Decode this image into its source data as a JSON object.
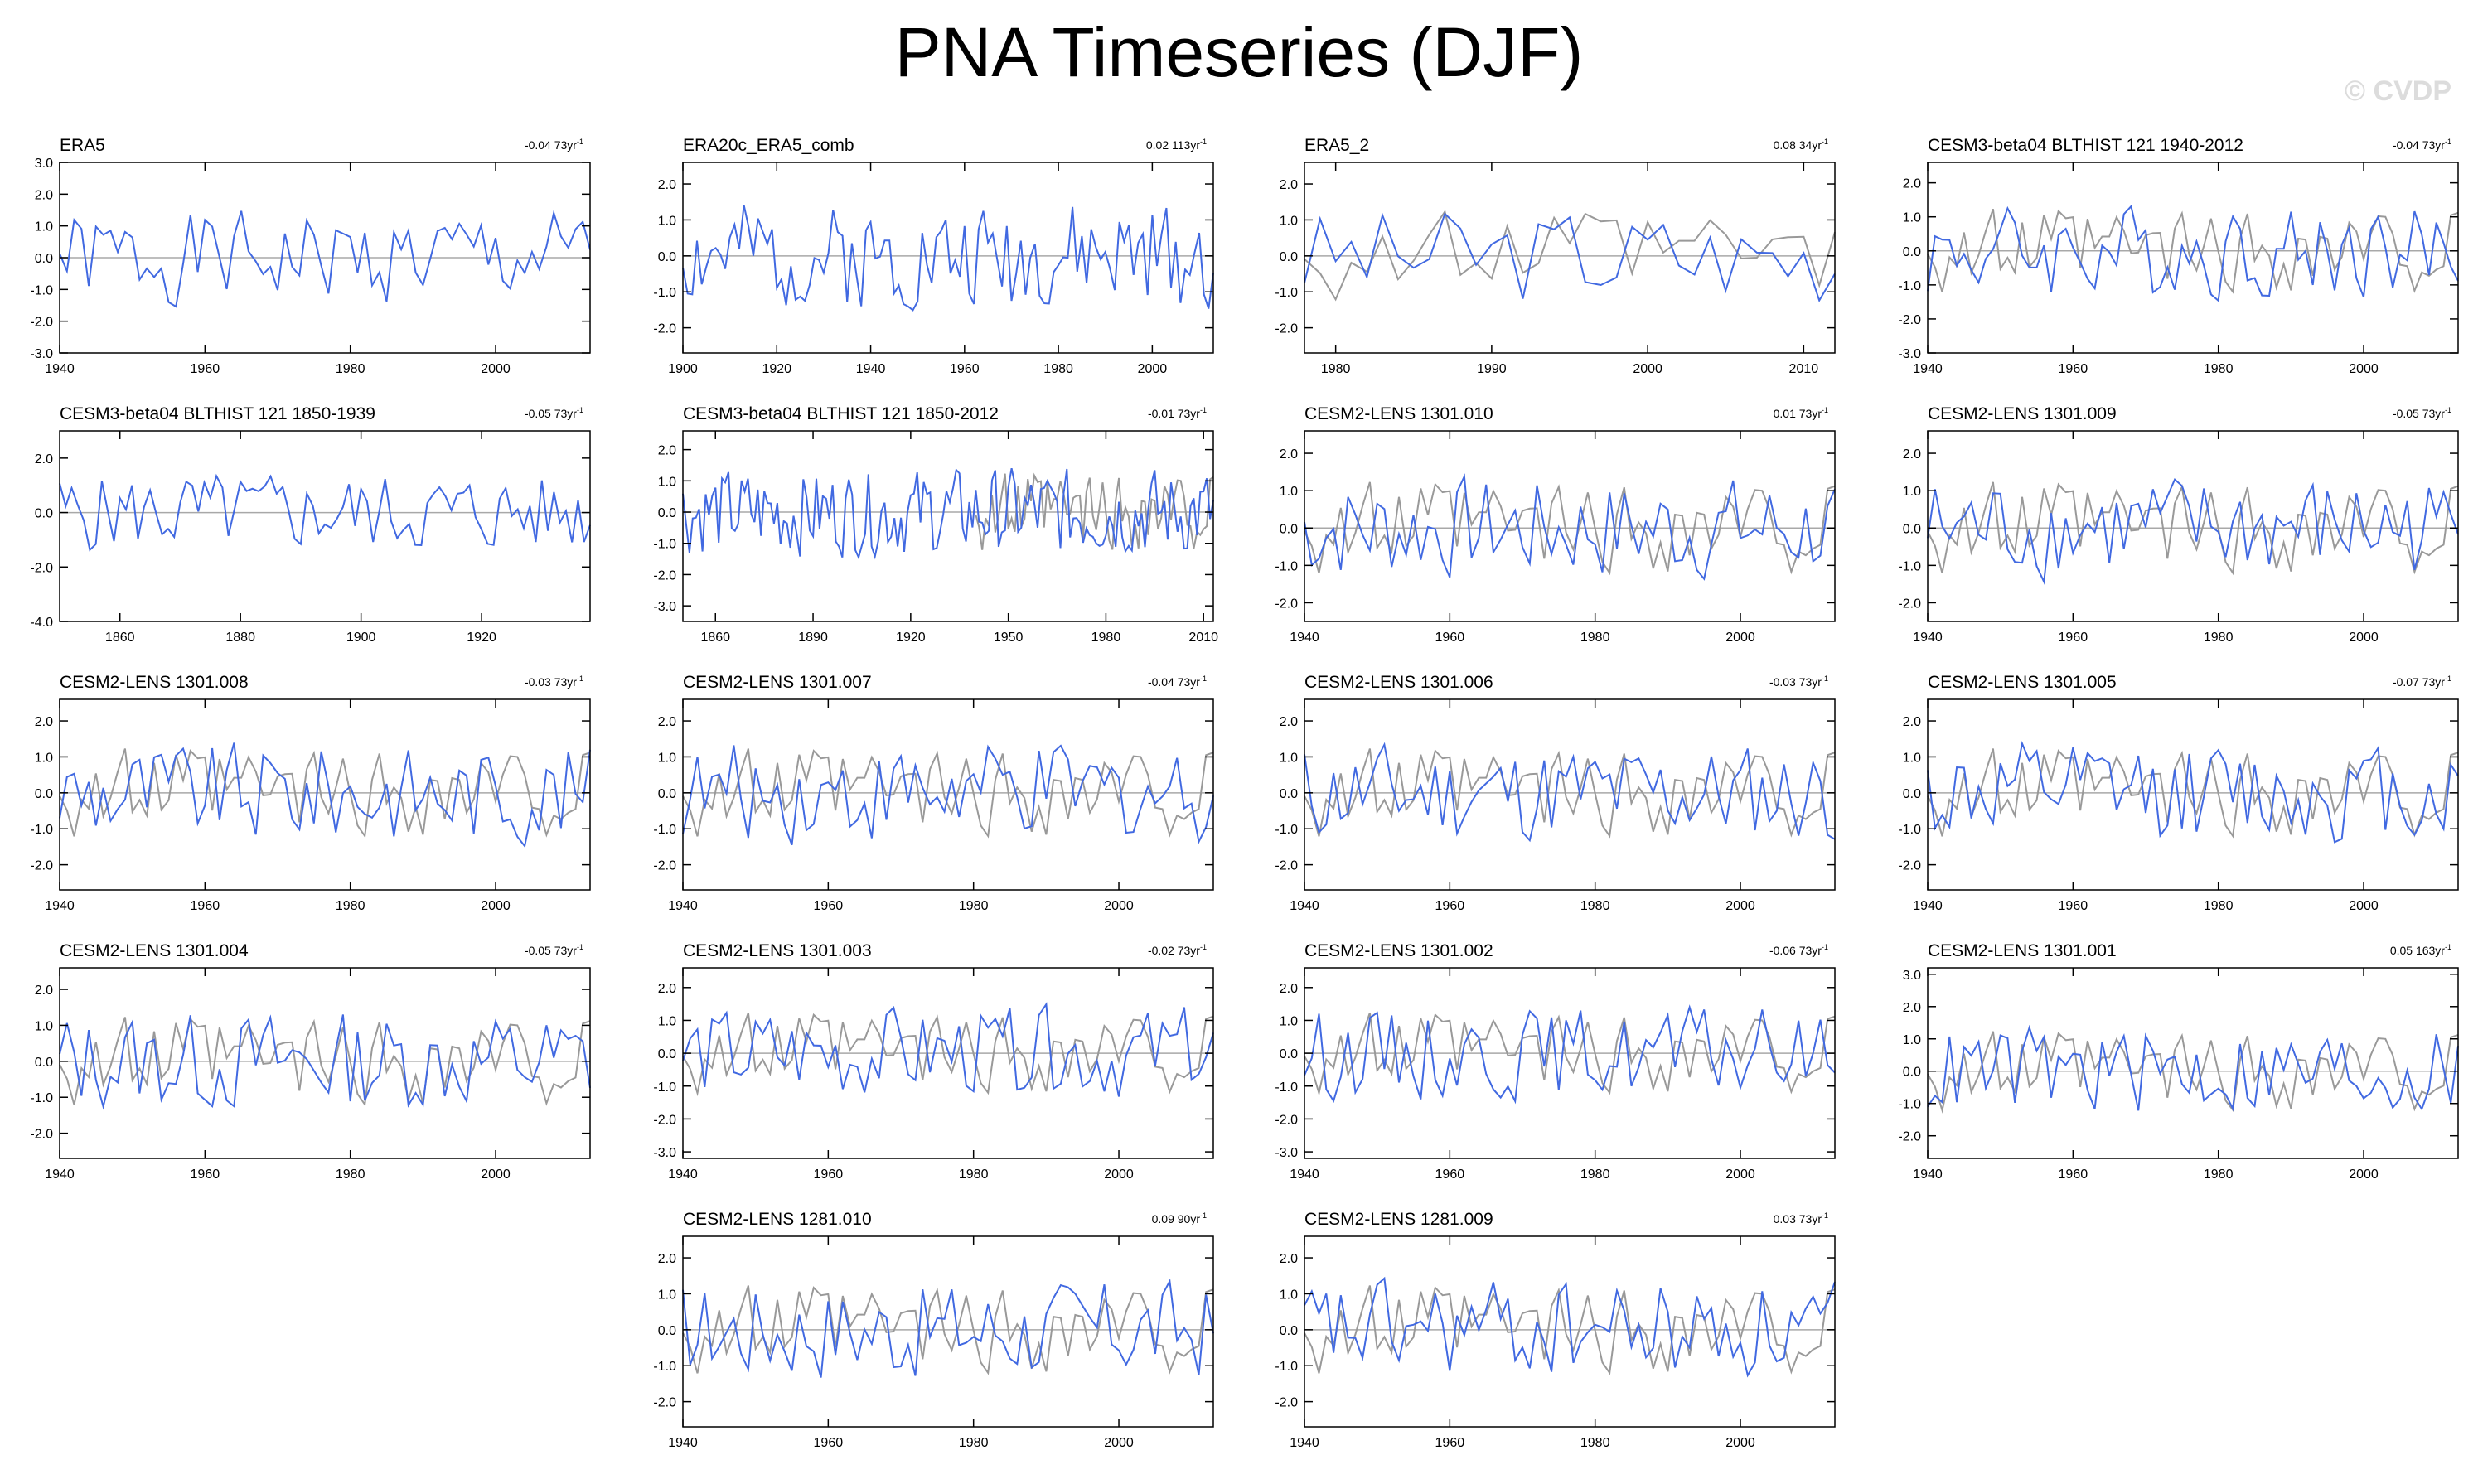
{
  "title": "PNA Timeseries (DJF)",
  "watermark": "© CVDP",
  "colors": {
    "series": "#4169e1",
    "observations": "#999999",
    "axis": "#000000",
    "zero": "#a8a8a8"
  },
  "chart_data": [
    {
      "title": "ERA5",
      "trend": "-0.04 73yr",
      "type": "line",
      "xlim": [
        1940,
        2013
      ],
      "ylim": [
        -3,
        3
      ],
      "yticks": [
        -3,
        -2,
        -1,
        0,
        1,
        2,
        3
      ],
      "xticks": [
        1940,
        1960,
        1980,
        2000
      ],
      "overlay": false,
      "seed": 1
    },
    {
      "title": "ERA20c_ERA5_comb",
      "trend": "0.02 113yr",
      "type": "line",
      "xlim": [
        1900,
        2013
      ],
      "ylim": [
        -2.7,
        2.6
      ],
      "yticks": [
        -2,
        -1,
        0,
        1,
        2
      ],
      "xticks": [
        1900,
        1920,
        1940,
        1960,
        1980,
        2000
      ],
      "overlay": false,
      "seed": 2
    },
    {
      "title": "ERA5_2",
      "trend": "0.08 34yr",
      "type": "line",
      "xlim": [
        1978,
        2012
      ],
      "ylim": [
        -2.7,
        2.6
      ],
      "yticks": [
        -2,
        -1,
        0,
        1,
        2
      ],
      "xticks": [
        1980,
        1990,
        2000,
        2010
      ],
      "overlay": true,
      "seed": 3
    },
    {
      "title": "CESM3-beta04 BLTHIST 121 1940-2012",
      "trend": "-0.04 73yr",
      "type": "line",
      "xlim": [
        1940,
        2013
      ],
      "ylim": [
        -3,
        2.6
      ],
      "yticks": [
        -3,
        -2,
        -1,
        0,
        1,
        2
      ],
      "xticks": [
        1940,
        1960,
        1980,
        2000
      ],
      "overlay": true,
      "seed": 4
    },
    {
      "title": "CESM3-beta04 BLTHIST 121 1850-1939",
      "trend": "-0.05 73yr",
      "type": "line",
      "xlim": [
        1850,
        1938
      ],
      "ylim": [
        -4,
        3
      ],
      "yticks": [
        -4,
        -2,
        0,
        2
      ],
      "xticks": [
        1860,
        1880,
        1900,
        1920
      ],
      "overlay": false,
      "seed": 5
    },
    {
      "title": "CESM3-beta04 BLTHIST 121 1850-2012",
      "trend": "-0.01 73yr",
      "type": "line",
      "xlim": [
        1850,
        2013
      ],
      "ylim": [
        -3.5,
        2.6
      ],
      "yticks": [
        -3,
        -2,
        -1,
        0,
        1,
        2
      ],
      "xticks": [
        1860,
        1890,
        1920,
        1950,
        1980,
        2010
      ],
      "overlay": true,
      "seed": 6
    },
    {
      "title": "CESM2-LENS 1301.010",
      "trend": "0.01 73yr",
      "type": "line",
      "xlim": [
        1940,
        2013
      ],
      "ylim": [
        -2.5,
        2.6
      ],
      "yticks": [
        -2,
        -1,
        0,
        1,
        2
      ],
      "xticks": [
        1940,
        1960,
        1980,
        2000
      ],
      "overlay": true,
      "seed": 7
    },
    {
      "title": "CESM2-LENS 1301.009",
      "trend": "-0.05 73yr",
      "type": "line",
      "xlim": [
        1940,
        2013
      ],
      "ylim": [
        -2.5,
        2.6
      ],
      "yticks": [
        -2,
        -1,
        0,
        1,
        2
      ],
      "xticks": [
        1940,
        1960,
        1980,
        2000
      ],
      "overlay": true,
      "seed": 8
    },
    {
      "title": "CESM2-LENS 1301.008",
      "trend": "-0.03 73yr",
      "type": "line",
      "xlim": [
        1940,
        2013
      ],
      "ylim": [
        -2.7,
        2.6
      ],
      "yticks": [
        -2,
        -1,
        0,
        1,
        2
      ],
      "xticks": [
        1940,
        1960,
        1980,
        2000
      ],
      "overlay": true,
      "seed": 9
    },
    {
      "title": "CESM2-LENS 1301.007",
      "trend": "-0.04 73yr",
      "type": "line",
      "xlim": [
        1940,
        2013
      ],
      "ylim": [
        -2.7,
        2.6
      ],
      "yticks": [
        -2,
        -1,
        0,
        1,
        2
      ],
      "xticks": [
        1940,
        1960,
        1980,
        2000
      ],
      "overlay": true,
      "seed": 10
    },
    {
      "title": "CESM2-LENS 1301.006",
      "trend": "-0.03 73yr",
      "type": "line",
      "xlim": [
        1940,
        2013
      ],
      "ylim": [
        -2.7,
        2.6
      ],
      "yticks": [
        -2,
        -1,
        0,
        1,
        2
      ],
      "xticks": [
        1940,
        1960,
        1980,
        2000
      ],
      "overlay": true,
      "seed": 11
    },
    {
      "title": "CESM2-LENS 1301.005",
      "trend": "-0.07 73yr",
      "type": "line",
      "xlim": [
        1940,
        2013
      ],
      "ylim": [
        -2.7,
        2.6
      ],
      "yticks": [
        -2,
        -1,
        0,
        1,
        2
      ],
      "xticks": [
        1940,
        1960,
        1980,
        2000
      ],
      "overlay": true,
      "seed": 12
    },
    {
      "title": "CESM2-LENS 1301.004",
      "trend": "-0.05 73yr",
      "type": "line",
      "xlim": [
        1940,
        2013
      ],
      "ylim": [
        -2.7,
        2.6
      ],
      "yticks": [
        -2,
        -1,
        0,
        1,
        2
      ],
      "xticks": [
        1940,
        1960,
        1980,
        2000
      ],
      "overlay": true,
      "seed": 13
    },
    {
      "title": "CESM2-LENS 1301.003",
      "trend": "-0.02 73yr",
      "type": "line",
      "xlim": [
        1940,
        2013
      ],
      "ylim": [
        -3.2,
        2.6
      ],
      "yticks": [
        -3,
        -2,
        -1,
        0,
        1,
        2
      ],
      "xticks": [
        1940,
        1960,
        1980,
        2000
      ],
      "overlay": true,
      "seed": 14
    },
    {
      "title": "CESM2-LENS 1301.002",
      "trend": "-0.06 73yr",
      "type": "line",
      "xlim": [
        1940,
        2013
      ],
      "ylim": [
        -3.2,
        2.6
      ],
      "yticks": [
        -3,
        -2,
        -1,
        0,
        1,
        2
      ],
      "xticks": [
        1940,
        1960,
        1980,
        2000
      ],
      "overlay": true,
      "seed": 15
    },
    {
      "title": "CESM2-LENS 1301.001",
      "trend": "0.05 163yr",
      "type": "line",
      "xlim": [
        1940,
        2013
      ],
      "ylim": [
        -2.7,
        3.2
      ],
      "yticks": [
        -2,
        -1,
        0,
        1,
        2,
        3
      ],
      "xticks": [
        1940,
        1960,
        1980,
        2000
      ],
      "overlay": true,
      "seed": 16
    },
    {
      "title": "CESM2-LENS 1281.010",
      "trend": "0.09 90yr",
      "type": "line",
      "xlim": [
        1940,
        2013
      ],
      "ylim": [
        -2.7,
        2.6
      ],
      "yticks": [
        -2,
        -1,
        0,
        1,
        2
      ],
      "xticks": [
        1940,
        1960,
        1980,
        2000
      ],
      "overlay": true,
      "seed": 17
    },
    {
      "title": "CESM2-LENS 1281.009",
      "trend": "0.03 73yr",
      "type": "line",
      "xlim": [
        1940,
        2013
      ],
      "ylim": [
        -2.7,
        2.6
      ],
      "yticks": [
        -2,
        -1,
        0,
        1,
        2
      ],
      "xticks": [
        1940,
        1960,
        1980,
        2000
      ],
      "overlay": true,
      "seed": 18
    }
  ]
}
